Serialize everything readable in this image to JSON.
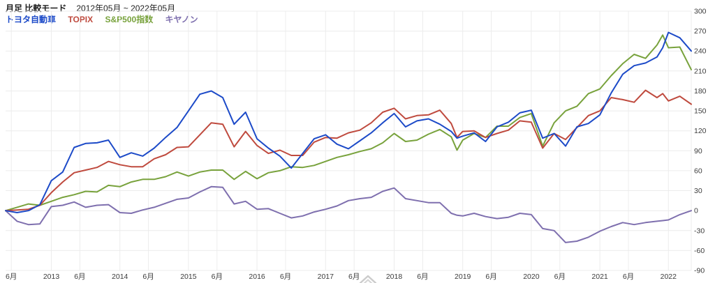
{
  "header": {
    "title": "月足 比較モード",
    "date_range": "2012年05月 ~ 2022年05月"
  },
  "legend": [
    {
      "label": "トヨタ自動車",
      "color": "#1c4ac8"
    },
    {
      "label": "TOPIX",
      "color": "#bf4a3e"
    },
    {
      "label": "S&P500指数",
      "color": "#78a23c"
    },
    {
      "label": "キヤノン",
      "color": "#7e6fae"
    }
  ],
  "controls": {
    "collapse_icon_color": "#cccccc"
  },
  "colors": {
    "grid": "#ececec",
    "axis_text": "#3c3c3c",
    "background": "#ffffff"
  },
  "chart_data": {
    "type": "line",
    "title": "月足 比較モード",
    "date_range": "2012年05月 ~ 2022年05月",
    "grid": true,
    "legend_position": "top-left",
    "ylim": [
      -90,
      300
    ],
    "y_ticks": [
      300,
      270,
      240,
      210,
      180,
      150,
      120,
      90,
      60,
      30,
      0,
      -30,
      -60,
      -90
    ],
    "x_axis": {
      "start": "2012-05",
      "end": "2022-05",
      "span_months": 120,
      "tick_months_from_start": [
        1,
        8,
        13,
        20,
        25,
        32,
        37,
        44,
        49,
        56,
        61,
        68,
        73,
        80,
        85,
        92,
        97,
        104,
        109,
        116
      ],
      "tick_labels": [
        "6月",
        "2013",
        "6月",
        "2014",
        "6月",
        "2015",
        "6月",
        "2016",
        "6月",
        "2017",
        "6月",
        "2018",
        "6月",
        "2019",
        "6月",
        "2020",
        "6月",
        "2021",
        "6月",
        "2022"
      ]
    },
    "x_month_index": [
      0,
      2,
      4,
      6,
      8,
      10,
      12,
      14,
      16,
      18,
      20,
      22,
      24,
      26,
      28,
      30,
      32,
      34,
      36,
      38,
      40,
      42,
      44,
      46,
      48,
      50,
      52,
      54,
      56,
      58,
      60,
      62,
      64,
      66,
      68,
      70,
      72,
      74,
      76,
      78,
      79,
      80,
      82,
      84,
      86,
      88,
      90,
      92,
      94,
      96,
      98,
      100,
      102,
      104,
      106,
      108,
      110,
      112,
      114,
      115,
      116,
      118,
      120
    ],
    "x": [
      "2012-05",
      "2012-07",
      "2012-09",
      "2012-11",
      "2013-01",
      "2013-03",
      "2013-05",
      "2013-07",
      "2013-09",
      "2013-11",
      "2014-01",
      "2014-03",
      "2014-05",
      "2014-07",
      "2014-09",
      "2014-11",
      "2015-01",
      "2015-03",
      "2015-05",
      "2015-07",
      "2015-09",
      "2015-11",
      "2016-01",
      "2016-03",
      "2016-05",
      "2016-07",
      "2016-09",
      "2016-11",
      "2017-01",
      "2017-03",
      "2017-05",
      "2017-07",
      "2017-09",
      "2017-11",
      "2018-01",
      "2018-03",
      "2018-05",
      "2018-07",
      "2018-09",
      "2018-11",
      "2018-12",
      "2019-01",
      "2019-03",
      "2019-05",
      "2019-07",
      "2019-09",
      "2019-11",
      "2020-01",
      "2020-03",
      "2020-05",
      "2020-07",
      "2020-09",
      "2020-11",
      "2021-01",
      "2021-03",
      "2021-05",
      "2021-07",
      "2021-09",
      "2021-11",
      "2021-12",
      "2022-01",
      "2022-03",
      "2022-05"
    ],
    "series": [
      {
        "name": "トヨタ自動車",
        "color": "#1c4ac8",
        "values": [
          0,
          -3,
          0,
          9,
          45,
          58,
          95,
          101,
          102,
          106,
          80,
          87,
          82,
          94,
          110,
          125,
          150,
          175,
          180,
          170,
          130,
          148,
          108,
          94,
          82,
          64,
          86,
          108,
          114,
          100,
          93,
          105,
          117,
          132,
          146,
          126,
          135,
          138,
          130,
          119,
          109,
          112,
          117,
          104,
          126,
          133,
          147,
          151,
          109,
          116,
          97,
          126,
          131,
          144,
          177,
          205,
          218,
          222,
          231,
          245,
          268,
          260,
          240
        ]
      },
      {
        "name": "TOPIX",
        "color": "#bf4a3e",
        "values": [
          0,
          1,
          2,
          8,
          27,
          43,
          57,
          61,
          65,
          74,
          69,
          66,
          66,
          78,
          84,
          95,
          96,
          114,
          132,
          130,
          96,
          119,
          98,
          86,
          91,
          83,
          83,
          103,
          110,
          109,
          117,
          121,
          132,
          148,
          154,
          138,
          143,
          144,
          151,
          131,
          110,
          119,
          120,
          110,
          116,
          121,
          135,
          133,
          94,
          116,
          107,
          125,
          143,
          150,
          170,
          167,
          163,
          181,
          170,
          176,
          165,
          172,
          160
        ]
      },
      {
        "name": "S&P500指数",
        "color": "#78a23c",
        "values": [
          0,
          5,
          10,
          8,
          14,
          20,
          24,
          29,
          28,
          38,
          36,
          43,
          47,
          47,
          51,
          58,
          52,
          58,
          61,
          61,
          47,
          59,
          48,
          57,
          60,
          66,
          65,
          68,
          74,
          80,
          84,
          89,
          93,
          102,
          116,
          104,
          106,
          115,
          122,
          111,
          91,
          106,
          116,
          110,
          127,
          127,
          140,
          146,
          97,
          132,
          150,
          157,
          176,
          183,
          203,
          221,
          235,
          229,
          249,
          264,
          245,
          246,
          212
        ]
      },
      {
        "name": "キヤノン",
        "color": "#7e6fae",
        "values": [
          0,
          -16,
          -21,
          -20,
          6,
          8,
          13,
          5,
          8,
          9,
          -3,
          -4,
          1,
          5,
          11,
          17,
          19,
          28,
          36,
          35,
          10,
          14,
          2,
          3,
          -4,
          -11,
          -8,
          -2,
          2,
          7,
          15,
          18,
          20,
          29,
          34,
          18,
          15,
          12,
          12,
          -4,
          -7,
          -8,
          -4,
          -9,
          -12,
          -10,
          -4,
          -6,
          -27,
          -30,
          -48,
          -46,
          -40,
          -31,
          -24,
          -18,
          -21,
          -18,
          -16,
          -15,
          -14,
          -6,
          0
        ]
      }
    ]
  }
}
